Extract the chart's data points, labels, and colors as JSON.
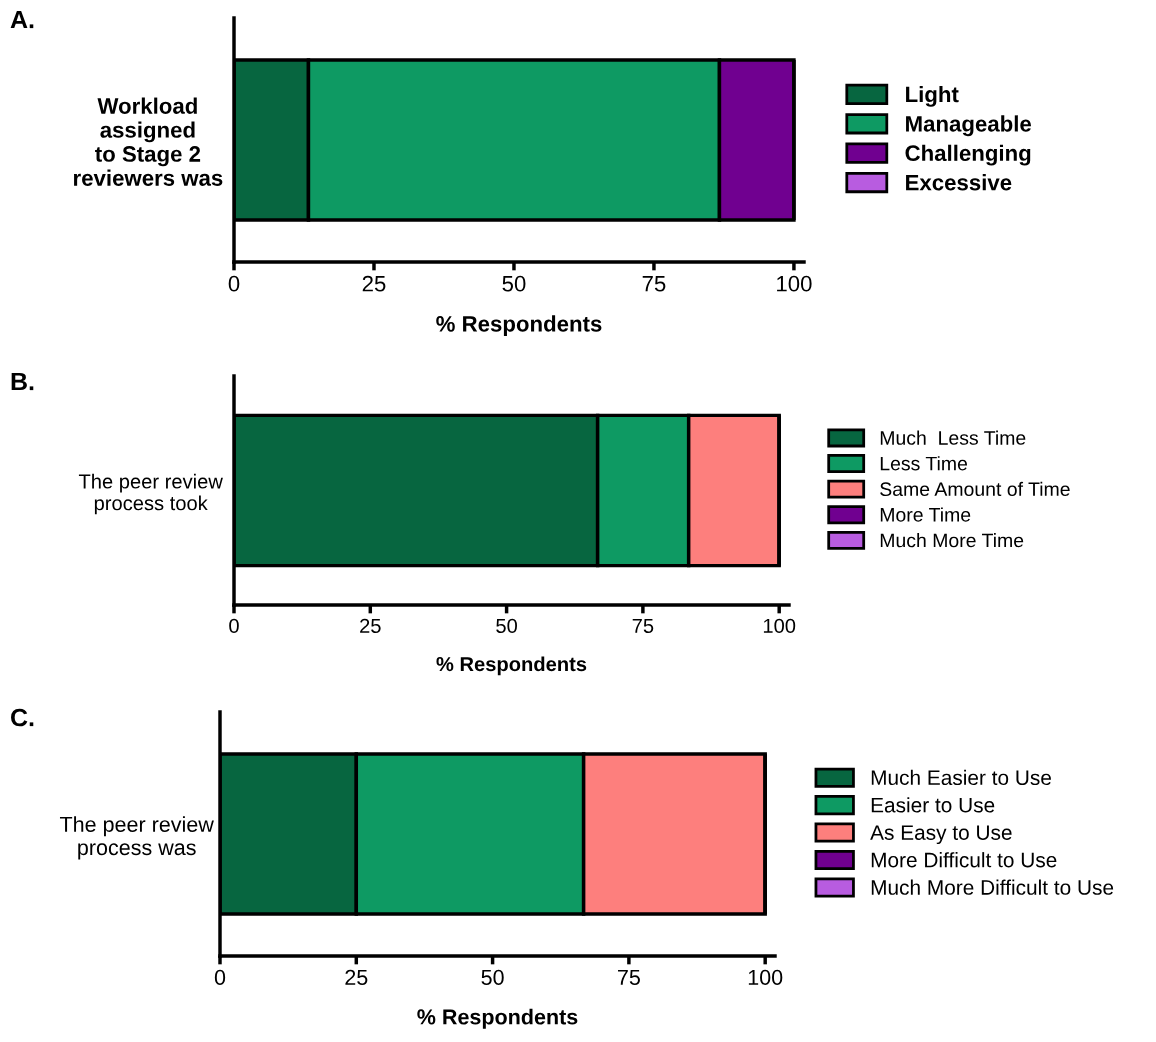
{
  "chart_data": [
    {
      "type": "bar",
      "title": "A.",
      "orientation": "horizontal",
      "stacked": true,
      "categories": [
        "Workload\nassigned\nto Stage 2\nreviewers was"
      ],
      "xlabel": "% Respondents",
      "xlim": [
        0,
        101.8
      ],
      "xticks": [
        0,
        25,
        50,
        75,
        100
      ],
      "legend": "right",
      "series": [
        {
          "name": "Light",
          "color": "#076640",
          "values": [
            13.3
          ]
        },
        {
          "name": "Manageable",
          "color": "#0e9a63",
          "values": [
            73.4
          ]
        },
        {
          "name": "Challenging",
          "color": "#700090",
          "values": [
            13.3
          ]
        },
        {
          "name": "Excessive",
          "color": "#b85ce0",
          "values": [
            0
          ]
        }
      ]
    },
    {
      "type": "bar",
      "title": "B.",
      "orientation": "horizontal",
      "stacked": true,
      "categories": [
        "The peer review\nprocess took"
      ],
      "xlabel": "% Respondents",
      "xlim": [
        0,
        101.8
      ],
      "xticks": [
        0,
        25,
        50,
        75,
        100
      ],
      "legend": "right",
      "series": [
        {
          "name": "Much  Less Time",
          "color": "#076640",
          "values": [
            66.7
          ]
        },
        {
          "name": "Less Time",
          "color": "#0e9a63",
          "values": [
            16.7
          ]
        },
        {
          "name": "Same Amount of Time",
          "color": "#fd7f7d",
          "values": [
            16.6
          ]
        },
        {
          "name": "More Time",
          "color": "#700090",
          "values": [
            0
          ]
        },
        {
          "name": "Much More Time",
          "color": "#b85ce0",
          "values": [
            0
          ]
        }
      ]
    },
    {
      "type": "bar",
      "title": "C.",
      "orientation": "horizontal",
      "stacked": true,
      "categories": [
        "The peer review\nprocess was"
      ],
      "xlabel": "% Respondents",
      "xlim": [
        0,
        101.8
      ],
      "xticks": [
        0,
        25,
        50,
        75,
        100
      ],
      "legend": "right",
      "series": [
        {
          "name": "Much Easier to Use",
          "color": "#076640",
          "values": [
            25
          ]
        },
        {
          "name": "Easier to Use",
          "color": "#0e9a63",
          "values": [
            41.7
          ]
        },
        {
          "name": "As Easy to Use",
          "color": "#fd7f7d",
          "values": [
            33.3
          ]
        },
        {
          "name": "More Difficult to Use",
          "color": "#700090",
          "values": [
            0
          ]
        },
        {
          "name": "Much More Difficult to Use",
          "color": "#b85ce0",
          "values": [
            0
          ]
        }
      ]
    }
  ]
}
